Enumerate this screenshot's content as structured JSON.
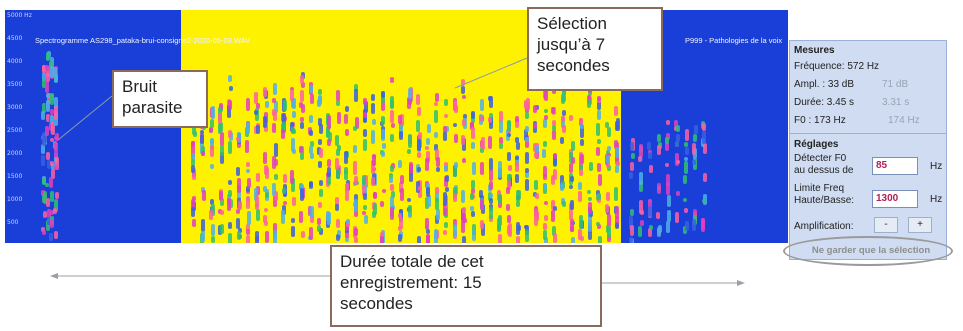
{
  "spectrogram": {
    "title": "Spectrogramme AS298_pataka-brui-consigne2-2020-05-03.WAV",
    "project_label": "P999 -  Pathologies de la voix",
    "freq_ticks": [
      "5000 Hz",
      "4500",
      "4000",
      "3500",
      "3000",
      "2500",
      "2000",
      "1500",
      "1000",
      "500"
    ],
    "colors": {
      "background": "#1a3fd8",
      "selection": "#fff200"
    }
  },
  "callouts": {
    "noise": "Bruit\nparasite",
    "selection": "Sélection\njusqu’à 7\nsecondes",
    "duration": "Durée totale de cet\nenregistrement: 15\nsecondes"
  },
  "panel": {
    "measures_title": "Mesures",
    "frequency": "Fréquence:  572 Hz",
    "ampl_label": "Ampl. : 33 dB",
    "ampl_prev": "71 dB",
    "duration_label": "Durée: 3.45 s",
    "duration_prev": "3.31 s",
    "f0_label": "F0 :  173 Hz",
    "f0_prev": "174 Hz",
    "settings_title": "Réglages",
    "detect_label_1": "Détecter F0",
    "detect_label_2": "au dessus de",
    "detect_value": "85",
    "detect_unit": "Hz",
    "limit_label_1": "Limite Freq",
    "limit_label_2": "Haute/Basse:",
    "limit_value": "1300",
    "limit_unit": "Hz",
    "amplification_label": "Amplification:",
    "minus": "-",
    "plus": "+",
    "keep_selection": "Ne garder que la sélection"
  }
}
